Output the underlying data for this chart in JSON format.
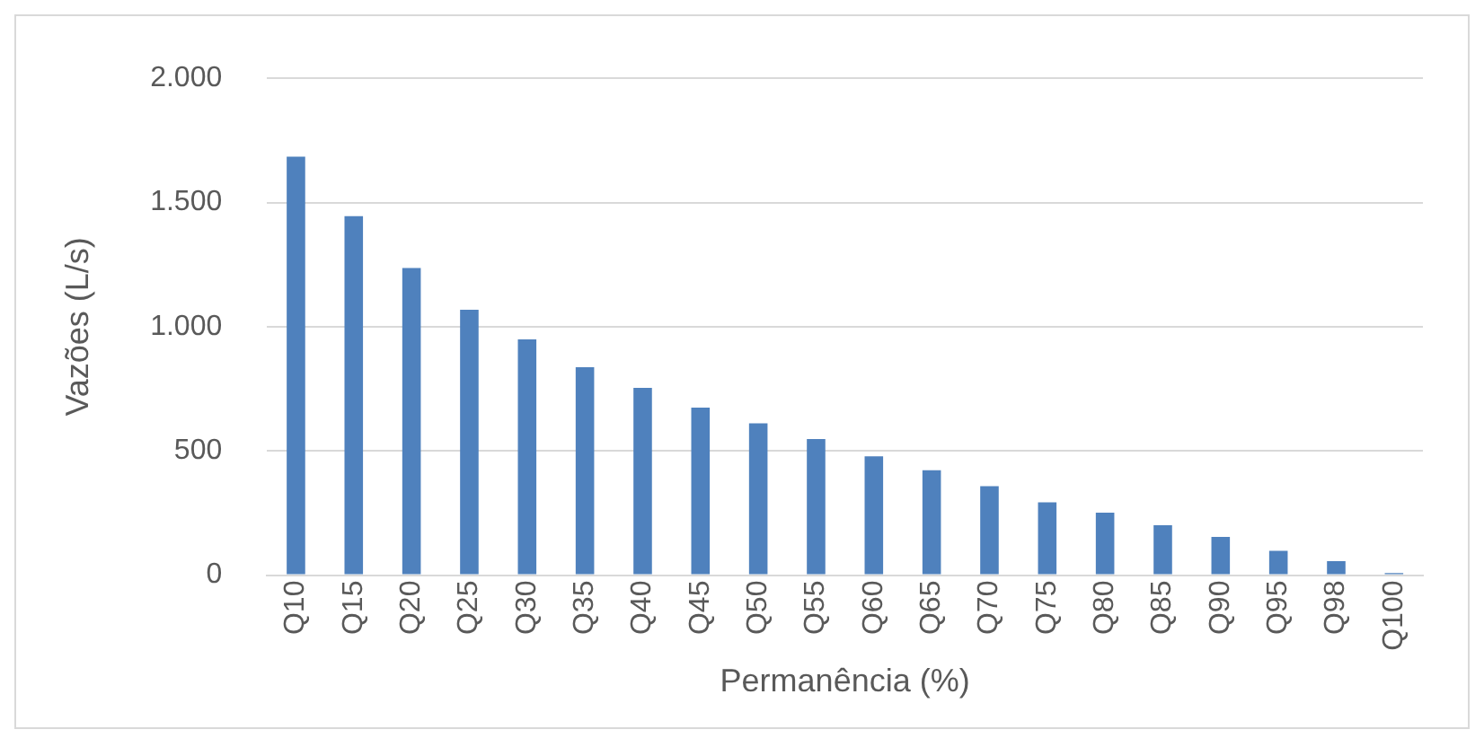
{
  "chart_data": {
    "type": "bar",
    "xlabel": "Permanência (%)",
    "ylabel": "Vazões (L/s)",
    "categories": [
      "Q10",
      "Q15",
      "Q20",
      "Q25",
      "Q30",
      "Q35",
      "Q40",
      "Q45",
      "Q50",
      "Q55",
      "Q60",
      "Q65",
      "Q70",
      "Q75",
      "Q80",
      "Q85",
      "Q90",
      "Q95",
      "Q98",
      "Q100"
    ],
    "values": [
      1684,
      1445,
      1236,
      1068,
      949,
      837,
      754,
      674,
      611,
      548,
      478,
      422,
      358,
      293,
      251,
      201,
      154,
      98,
      56,
      8
    ],
    "color": "#4f81bd",
    "ylim": [
      0,
      2000
    ],
    "yticks": [
      0,
      500,
      {
        "value": 1000,
        "label": "1.000"
      },
      {
        "value": 1500,
        "label": "1.500"
      },
      {
        "value": 2000,
        "label": "2.000"
      }
    ],
    "grid": "y"
  }
}
